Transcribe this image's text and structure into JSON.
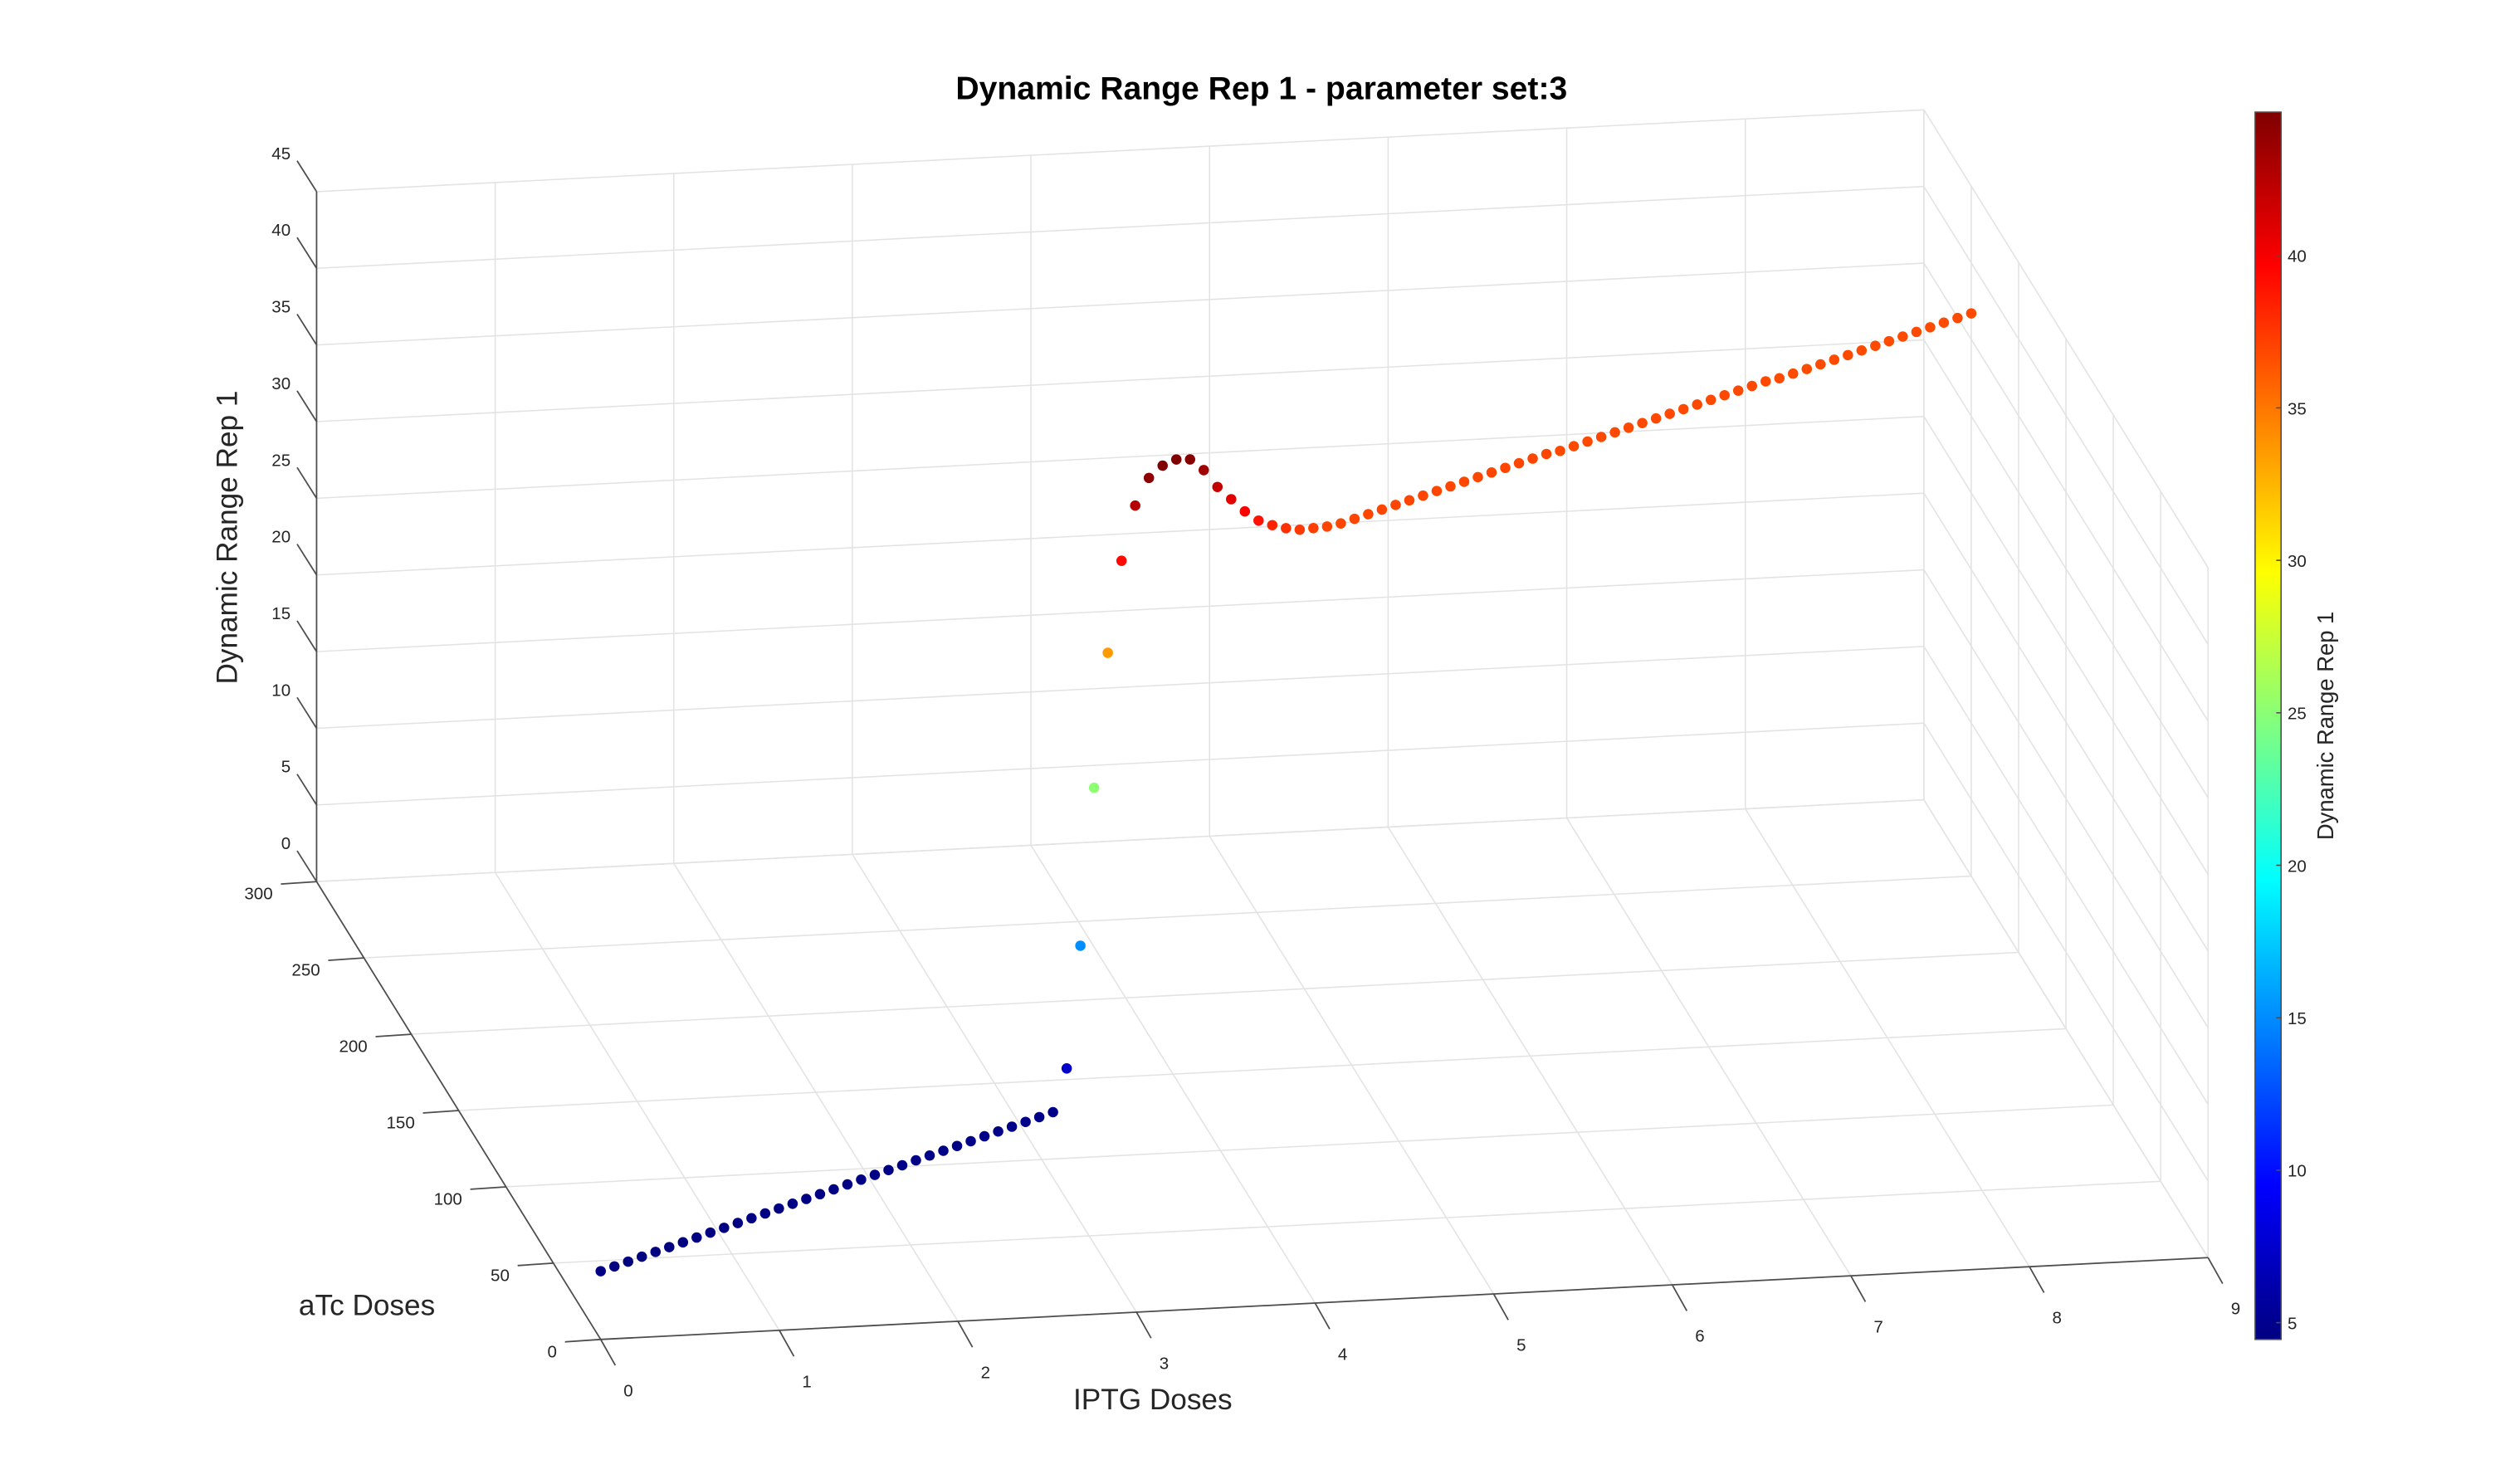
{
  "chart_data": {
    "type": "scatter3d",
    "title": "Dynamic Range Rep 1 - parameter set:3",
    "xlabel": "IPTG Doses",
    "ylabel": "aTc Doses",
    "zlabel": "Dynamic Range Rep 1",
    "colorbar_label": "Dynamic Range Rep 1",
    "colormap": "jet",
    "grid": true,
    "xlim": [
      0,
      9
    ],
    "xticks": [
      0,
      1,
      2,
      3,
      4,
      5,
      6,
      7,
      8,
      9
    ],
    "ylim": [
      0,
      300
    ],
    "yticks": [
      0,
      50,
      100,
      150,
      200,
      250,
      300
    ],
    "zlim": [
      0,
      45
    ],
    "zticks": [
      0,
      5,
      10,
      15,
      20,
      25,
      30,
      35,
      40,
      45
    ],
    "clim": [
      4.45,
      44.7
    ],
    "cticks": [
      5,
      10,
      15,
      20,
      25,
      30,
      35,
      40
    ],
    "x": [
      0,
      0.09,
      0.18,
      0.27,
      0.36,
      0.45,
      0.54,
      0.63,
      0.72,
      0.81,
      0.9,
      0.99,
      1.08,
      1.17,
      1.26,
      1.35,
      1.44,
      1.53,
      1.62,
      1.71,
      1.8,
      1.89,
      1.98,
      2.07,
      2.16,
      2.25,
      2.34,
      2.43,
      2.52,
      2.61,
      2.7,
      2.79,
      2.88,
      2.97,
      3.06,
      3.15,
      3.24,
      3.33,
      3.42,
      3.51,
      3.6,
      3.69,
      3.78,
      3.87,
      3.96,
      4.05,
      4.14,
      4.23,
      4.32,
      4.41,
      4.5,
      4.59,
      4.68,
      4.77,
      4.86,
      4.95,
      5.04,
      5.13,
      5.22,
      5.31,
      5.4,
      5.49,
      5.58,
      5.67,
      5.76,
      5.85,
      5.94,
      6.03,
      6.12,
      6.21,
      6.3,
      6.39,
      6.48,
      6.57,
      6.66,
      6.75,
      6.84,
      6.93,
      7.02,
      7.11,
      7.2,
      7.29,
      7.38,
      7.47,
      7.56,
      7.65,
      7.74,
      7.83,
      7.92,
      8.01,
      8.1,
      8.19,
      8.28,
      8.37,
      8.46,
      8.55,
      8.64,
      8.73,
      8.82,
      8.91,
      9
    ],
    "y": [
      0,
      2.5,
      5,
      7.5,
      10,
      12.5,
      15,
      17.5,
      20,
      22.5,
      25,
      27.5,
      30,
      32.5,
      35,
      37.5,
      40,
      42.5,
      45,
      47.5,
      50,
      52.5,
      55,
      57.5,
      60,
      62.5,
      65,
      67.5,
      70,
      72.5,
      75,
      77.5,
      80,
      82.5,
      85,
      87.5,
      90,
      92.5,
      95,
      97.5,
      100,
      102.5,
      105,
      107.5,
      110,
      112.5,
      115,
      117.5,
      120,
      122.5,
      125,
      127.5,
      130,
      132.5,
      135,
      137.5,
      140,
      142.5,
      145,
      147.5,
      150,
      152.5,
      155,
      157.5,
      160,
      162.5,
      165,
      167.5,
      170,
      172.5,
      175,
      177.5,
      180,
      182.5,
      185,
      187.5,
      190,
      192.5,
      195,
      197.5,
      200,
      202.5,
      205,
      207.5,
      210,
      212.5,
      215,
      217.5,
      220,
      222.5,
      225,
      227.5,
      230,
      232.5,
      235,
      237.5,
      240,
      242.5,
      245,
      247.5,
      250
    ],
    "z": [
      4.45,
      4.46,
      4.47,
      4.49,
      4.5,
      4.51,
      4.52,
      4.53,
      4.55,
      4.56,
      4.57,
      4.58,
      4.59,
      4.61,
      4.62,
      4.63,
      4.64,
      4.65,
      4.67,
      4.68,
      4.69,
      4.7,
      4.71,
      4.73,
      4.74,
      4.75,
      4.76,
      4.77,
      4.79,
      4.8,
      4.81,
      4.82,
      4.83,
      4.85,
      7.4,
      15.1,
      25.1,
      33.6,
      39.3,
      42.6,
      44.1,
      44.6,
      44.7,
      44.4,
      43.4,
      42,
      40.9,
      39.8,
      38.9,
      38.3,
      37.8,
      37.4,
      37.2,
      37,
      36.9,
      36.9,
      36.9,
      36.9,
      36.9,
      36.9,
      36.9,
      36.9,
      36.9,
      36.9,
      36.9,
      36.9,
      36.9,
      36.9,
      36.9,
      36.9,
      36.8,
      36.8,
      36.8,
      36.8,
      36.8,
      36.8,
      36.8,
      36.8,
      36.8,
      36.8,
      36.8,
      36.8,
      36.8,
      36.8,
      36.8,
      36.8,
      36.7,
      36.7,
      36.7,
      36.7,
      36.7,
      36.7,
      36.7,
      36.7,
      36.7,
      36.7,
      36.7,
      36.7,
      36.7,
      36.7,
      36.7
    ]
  }
}
